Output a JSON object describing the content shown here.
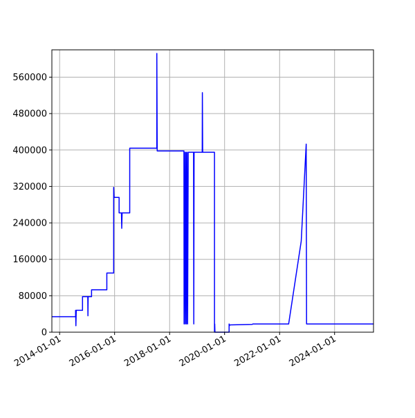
{
  "chart_data": {
    "type": "line",
    "title": "",
    "xlabel": "",
    "ylabel": "",
    "x_type": "date",
    "xlim": [
      "2013-09-20",
      "2025-06-01"
    ],
    "ylim": [
      0,
      620000
    ],
    "grid": true,
    "legend": "none",
    "x_ticks": [
      "2014-01-01",
      "2016-01-01",
      "2018-01-01",
      "2020-01-01",
      "2022-01-01",
      "2024-01-01"
    ],
    "y_ticks": [
      0,
      80000,
      160000,
      240000,
      320000,
      400000,
      480000,
      560000
    ],
    "y_tick_labels": [
      "0",
      "80000",
      "160000",
      "240000",
      "320000",
      "400000",
      "480000",
      "560000"
    ],
    "series": [
      {
        "color": "#0000ff",
        "points": [
          [
            "2013-09-20",
            34000
          ],
          [
            "2014-08-01",
            34000
          ],
          [
            "2014-08-01",
            48000
          ],
          [
            "2014-08-05",
            14000
          ],
          [
            "2014-08-10",
            48000
          ],
          [
            "2014-11-01",
            48000
          ],
          [
            "2014-11-01",
            78000
          ],
          [
            "2015-01-10",
            78000
          ],
          [
            "2015-01-12",
            36000
          ],
          [
            "2015-01-15",
            78000
          ],
          [
            "2015-03-01",
            78000
          ],
          [
            "2015-03-01",
            93000
          ],
          [
            "2015-09-20",
            93000
          ],
          [
            "2015-09-20",
            130000
          ],
          [
            "2015-12-20",
            130000
          ],
          [
            "2015-12-20",
            318000
          ],
          [
            "2015-12-25",
            296000
          ],
          [
            "2016-03-01",
            296000
          ],
          [
            "2016-03-01",
            262000
          ],
          [
            "2016-04-01",
            262000
          ],
          [
            "2016-04-05",
            228000
          ],
          [
            "2016-04-10",
            262000
          ],
          [
            "2016-07-20",
            262000
          ],
          [
            "2016-07-20",
            404000
          ],
          [
            "2017-07-15",
            404000
          ],
          [
            "2017-07-15",
            612000
          ],
          [
            "2017-07-20",
            398000
          ],
          [
            "2018-07-10",
            398000
          ],
          [
            "2018-07-12",
            18000
          ],
          [
            "2018-07-20",
            395000
          ],
          [
            "2018-07-28",
            18000
          ],
          [
            "2018-08-05",
            395000
          ],
          [
            "2018-08-12",
            18000
          ],
          [
            "2018-08-20",
            395000
          ],
          [
            "2018-08-28",
            18000
          ],
          [
            "2018-09-05",
            395000
          ],
          [
            "2018-11-15",
            395000
          ],
          [
            "2018-11-18",
            18000
          ],
          [
            "2018-11-22",
            395000
          ],
          [
            "2019-03-10",
            395000
          ],
          [
            "2019-03-12",
            526000
          ],
          [
            "2019-03-16",
            395000
          ],
          [
            "2019-08-20",
            395000
          ],
          [
            "2019-08-20",
            0
          ],
          [
            "2019-08-23",
            18000
          ],
          [
            "2019-08-26",
            0
          ],
          [
            "2020-03-01",
            0
          ],
          [
            "2020-03-01",
            18000
          ],
          [
            "2020-03-05",
            14000
          ],
          [
            "2020-03-10",
            16000
          ],
          [
            "2021-01-01",
            17000
          ],
          [
            "2021-01-10",
            18000
          ],
          [
            "2021-06-01",
            18000
          ],
          [
            "2022-05-01",
            18000
          ],
          [
            "2022-10-15",
            200000
          ],
          [
            "2022-12-20",
            413000
          ],
          [
            "2022-12-25",
            18000
          ],
          [
            "2025-06-01",
            18000
          ]
        ]
      }
    ]
  }
}
